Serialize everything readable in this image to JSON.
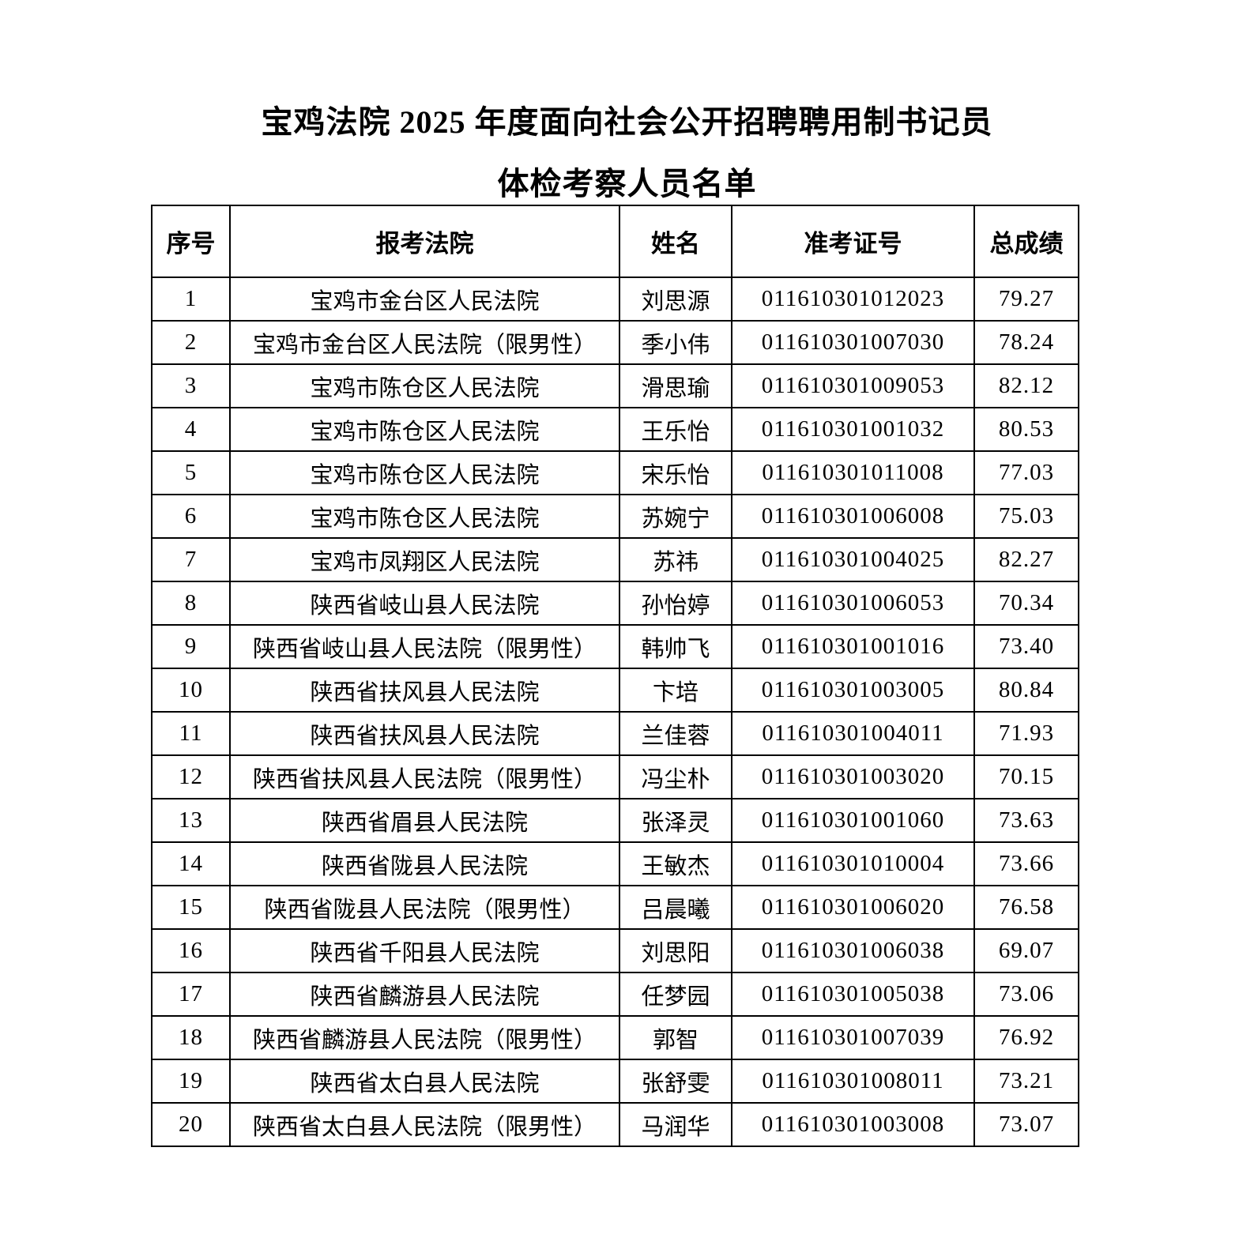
{
  "document": {
    "title_line1": "宝鸡法院 2025 年度面向社会公开招聘聘用制书记员",
    "title_line2": "体检考察人员名单"
  },
  "table": {
    "headers": [
      "序号",
      "报考法院",
      "姓名",
      "准考证号",
      "总成绩"
    ],
    "rows": [
      {
        "no": "1",
        "court": "宝鸡市金台区人民法院",
        "name": "刘思源",
        "exam_no": "011610301012023",
        "score": "79.27"
      },
      {
        "no": "2",
        "court": "宝鸡市金台区人民法院（限男性）",
        "name": "季小伟",
        "exam_no": "011610301007030",
        "score": "78.24"
      },
      {
        "no": "3",
        "court": "宝鸡市陈仓区人民法院",
        "name": "滑思瑜",
        "exam_no": "011610301009053",
        "score": "82.12"
      },
      {
        "no": "4",
        "court": "宝鸡市陈仓区人民法院",
        "name": "王乐怡",
        "exam_no": "011610301001032",
        "score": "80.53"
      },
      {
        "no": "5",
        "court": "宝鸡市陈仓区人民法院",
        "name": "宋乐怡",
        "exam_no": "011610301011008",
        "score": "77.03"
      },
      {
        "no": "6",
        "court": "宝鸡市陈仓区人民法院",
        "name": "苏婉宁",
        "exam_no": "011610301006008",
        "score": "75.03"
      },
      {
        "no": "7",
        "court": "宝鸡市凤翔区人民法院",
        "name": "苏祎",
        "exam_no": "011610301004025",
        "score": "82.27"
      },
      {
        "no": "8",
        "court": "陕西省岐山县人民法院",
        "name": "孙怡婷",
        "exam_no": "011610301006053",
        "score": "70.34"
      },
      {
        "no": "9",
        "court": "陕西省岐山县人民法院（限男性）",
        "name": "韩帅飞",
        "exam_no": "011610301001016",
        "score": "73.40"
      },
      {
        "no": "10",
        "court": "陕西省扶风县人民法院",
        "name": "卞培",
        "exam_no": "011610301003005",
        "score": "80.84"
      },
      {
        "no": "11",
        "court": "陕西省扶风县人民法院",
        "name": "兰佳蓉",
        "exam_no": "011610301004011",
        "score": "71.93"
      },
      {
        "no": "12",
        "court": "陕西省扶风县人民法院（限男性）",
        "name": "冯尘朴",
        "exam_no": "011610301003020",
        "score": "70.15"
      },
      {
        "no": "13",
        "court": "陕西省眉县人民法院",
        "name": "张泽灵",
        "exam_no": "011610301001060",
        "score": "73.63"
      },
      {
        "no": "14",
        "court": "陕西省陇县人民法院",
        "name": "王敏杰",
        "exam_no": "011610301010004",
        "score": "73.66"
      },
      {
        "no": "15",
        "court": "陕西省陇县人民法院（限男性）",
        "name": "吕晨曦",
        "exam_no": "011610301006020",
        "score": "76.58"
      },
      {
        "no": "16",
        "court": "陕西省千阳县人民法院",
        "name": "刘思阳",
        "exam_no": "011610301006038",
        "score": "69.07"
      },
      {
        "no": "17",
        "court": "陕西省麟游县人民法院",
        "name": "任梦园",
        "exam_no": "011610301005038",
        "score": "73.06"
      },
      {
        "no": "18",
        "court": "陕西省麟游县人民法院（限男性）",
        "name": "郭智",
        "exam_no": "011610301007039",
        "score": "76.92"
      },
      {
        "no": "19",
        "court": "陕西省太白县人民法院",
        "name": "张舒雯",
        "exam_no": "011610301008011",
        "score": "73.21"
      },
      {
        "no": "20",
        "court": "陕西省太白县人民法院（限男性）",
        "name": "马润华",
        "exam_no": "011610301003008",
        "score": "73.07"
      }
    ]
  }
}
